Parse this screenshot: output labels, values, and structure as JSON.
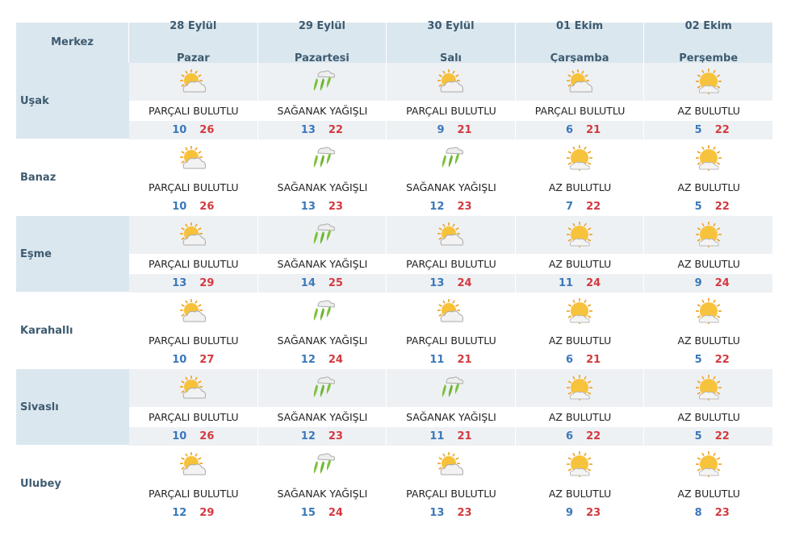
{
  "header": {
    "title": "Merkez",
    "days": [
      {
        "date": "28 Eylül",
        "weekday": "Pazar"
      },
      {
        "date": "29 Eylül",
        "weekday": "Pazartesi"
      },
      {
        "date": "30 Eylül",
        "weekday": "Salı"
      },
      {
        "date": "01 Ekim",
        "weekday": "Çarşamba"
      },
      {
        "date": "02 Ekim",
        "weekday": "Perşembe"
      }
    ]
  },
  "rows": [
    {
      "name": "Uşak",
      "cells": [
        {
          "condition": "PARÇALI BULUTLU",
          "min": 10,
          "max": 26
        },
        {
          "condition": "SAĞANAK YAĞIŞLI",
          "min": 13,
          "max": 22
        },
        {
          "condition": "PARÇALI BULUTLU",
          "min": 9,
          "max": 21
        },
        {
          "condition": "PARÇALI BULUTLU",
          "min": 6,
          "max": 21
        },
        {
          "condition": "AZ BULUTLU",
          "min": 5,
          "max": 22
        }
      ]
    },
    {
      "name": "Banaz",
      "cells": [
        {
          "condition": "PARÇALI BULUTLU",
          "min": 10,
          "max": 26
        },
        {
          "condition": "SAĞANAK YAĞIŞLI",
          "min": 13,
          "max": 23
        },
        {
          "condition": "SAĞANAK YAĞIŞLI",
          "min": 12,
          "max": 23
        },
        {
          "condition": "AZ BULUTLU",
          "min": 7,
          "max": 22
        },
        {
          "condition": "AZ BULUTLU",
          "min": 5,
          "max": 22
        }
      ]
    },
    {
      "name": "Eşme",
      "cells": [
        {
          "condition": "PARÇALI BULUTLU",
          "min": 13,
          "max": 29
        },
        {
          "condition": "SAĞANAK YAĞIŞLI",
          "min": 14,
          "max": 25
        },
        {
          "condition": "PARÇALI BULUTLU",
          "min": 13,
          "max": 24
        },
        {
          "condition": "AZ BULUTLU",
          "min": 11,
          "max": 24
        },
        {
          "condition": "AZ BULUTLU",
          "min": 9,
          "max": 24
        }
      ]
    },
    {
      "name": "Karahallı",
      "cells": [
        {
          "condition": "PARÇALI BULUTLU",
          "min": 10,
          "max": 27
        },
        {
          "condition": "SAĞANAK YAĞIŞLI",
          "min": 12,
          "max": 24
        },
        {
          "condition": "PARÇALI BULUTLU",
          "min": 11,
          "max": 21
        },
        {
          "condition": "AZ BULUTLU",
          "min": 6,
          "max": 21
        },
        {
          "condition": "AZ BULUTLU",
          "min": 5,
          "max": 22
        }
      ]
    },
    {
      "name": "Sivaslı",
      "cells": [
        {
          "condition": "PARÇALI BULUTLU",
          "min": 10,
          "max": 26
        },
        {
          "condition": "SAĞANAK YAĞIŞLI",
          "min": 12,
          "max": 23
        },
        {
          "condition": "SAĞANAK YAĞIŞLI",
          "min": 11,
          "max": 21
        },
        {
          "condition": "AZ BULUTLU",
          "min": 6,
          "max": 22
        },
        {
          "condition": "AZ BULUTLU",
          "min": 5,
          "max": 22
        }
      ]
    },
    {
      "name": "Ulubey",
      "cells": [
        {
          "condition": "PARÇALI BULUTLU",
          "min": 12,
          "max": 29
        },
        {
          "condition": "SAĞANAK YAĞIŞLI",
          "min": 15,
          "max": 24
        },
        {
          "condition": "PARÇALI BULUTLU",
          "min": 13,
          "max": 23
        },
        {
          "condition": "AZ BULUTLU",
          "min": 9,
          "max": 23
        },
        {
          "condition": "AZ BULUTLU",
          "min": 8,
          "max": 23
        }
      ]
    }
  ]
}
